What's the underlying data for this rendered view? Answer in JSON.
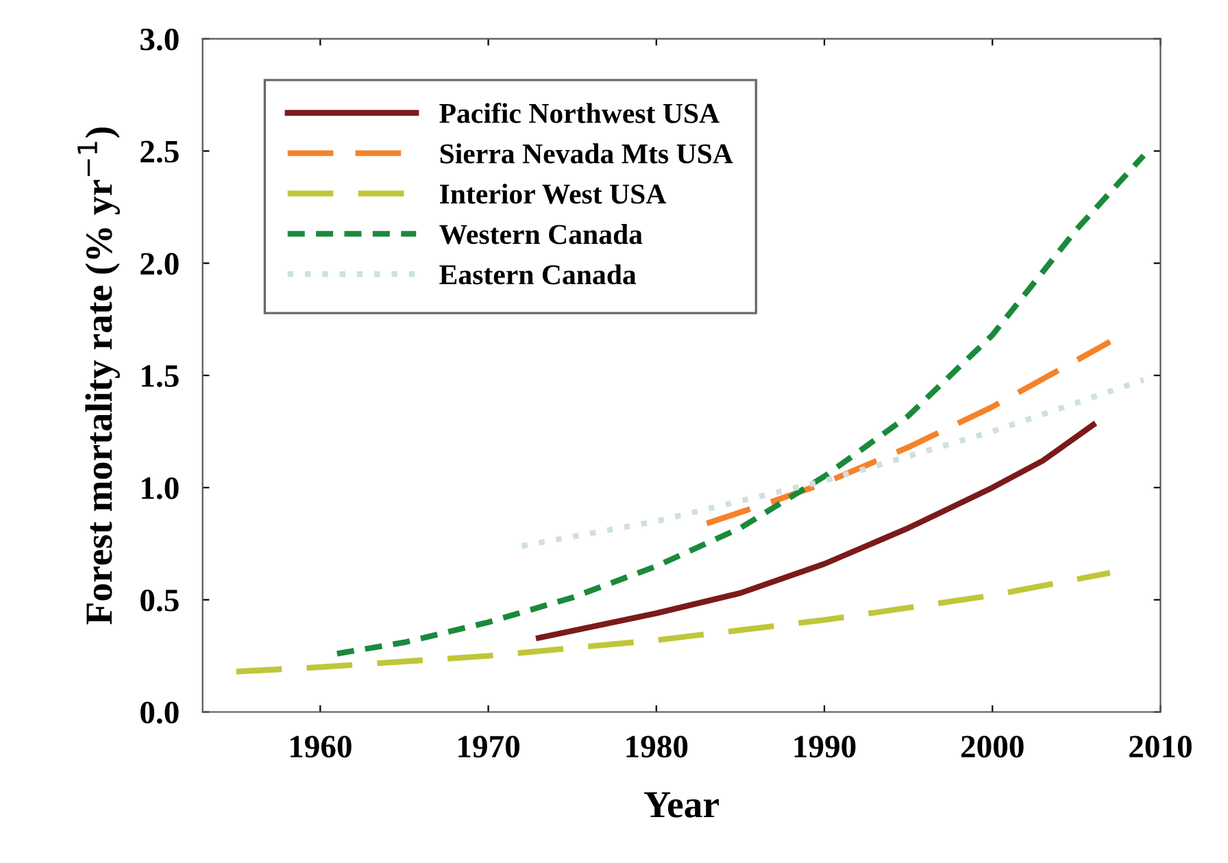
{
  "chart_data": {
    "type": "line",
    "xlabel": "Year",
    "ylabel": "Forest mortality rate (% yr$^{−1}$)",
    "xlim": [
      1953,
      2010
    ],
    "xticks": [
      1960,
      1970,
      1980,
      1990,
      2000,
      2010
    ],
    "ylim": [
      0,
      3
    ],
    "yticks": [
      {
        "value": 0,
        "label": "0.0"
      },
      {
        "value": 0.5,
        "label": "0.5"
      },
      {
        "value": 1,
        "label": "1.0"
      },
      {
        "value": 1.5,
        "label": "1.5"
      },
      {
        "value": 2,
        "label": "2.0"
      },
      {
        "value": 2.5,
        "label": "2.5"
      },
      {
        "value": 3,
        "label": "3.0"
      }
    ],
    "grid": false,
    "legend": "top left",
    "series": [
      {
        "name": "Pacific Northwest USA",
        "color": "#7b1a1a",
        "line_style": "solid",
        "x": [
          1973,
          1980,
          1985,
          1990,
          1995,
          2000,
          2003,
          2006
        ],
        "values": [
          0.33,
          0.44,
          0.53,
          0.66,
          0.82,
          1.0,
          1.12,
          1.28
        ]
      },
      {
        "name": "Sierra Nevada Mts USA",
        "color": "#f5822a",
        "line_style": "dashed",
        "x": [
          1983,
          1987,
          1990,
          1995,
          2000,
          2007
        ],
        "values": [
          0.84,
          0.94,
          1.02,
          1.18,
          1.36,
          1.65
        ]
      },
      {
        "name": "Interior West USA",
        "color": "#c0c63a",
        "line_style": "dashed",
        "x": [
          1955,
          1960,
          1970,
          1980,
          1990,
          2000,
          2007
        ],
        "values": [
          0.18,
          0.2,
          0.25,
          0.32,
          0.41,
          0.52,
          0.62
        ]
      },
      {
        "name": "Western Canada",
        "color": "#1a8a3a",
        "line_style": "dashed",
        "x": [
          1961,
          1965,
          1970,
          1975,
          1980,
          1985,
          1990,
          1995,
          2000,
          2005,
          2009
        ],
        "values": [
          0.26,
          0.31,
          0.4,
          0.51,
          0.65,
          0.82,
          1.05,
          1.32,
          1.68,
          2.15,
          2.48
        ]
      },
      {
        "name": "Eastern Canada",
        "color": "#cfe0e0",
        "line_style": "dotted",
        "x": [
          1972,
          1980,
          1990,
          2000,
          2009
        ],
        "values": [
          0.74,
          0.85,
          1.03,
          1.25,
          1.48
        ]
      }
    ]
  }
}
